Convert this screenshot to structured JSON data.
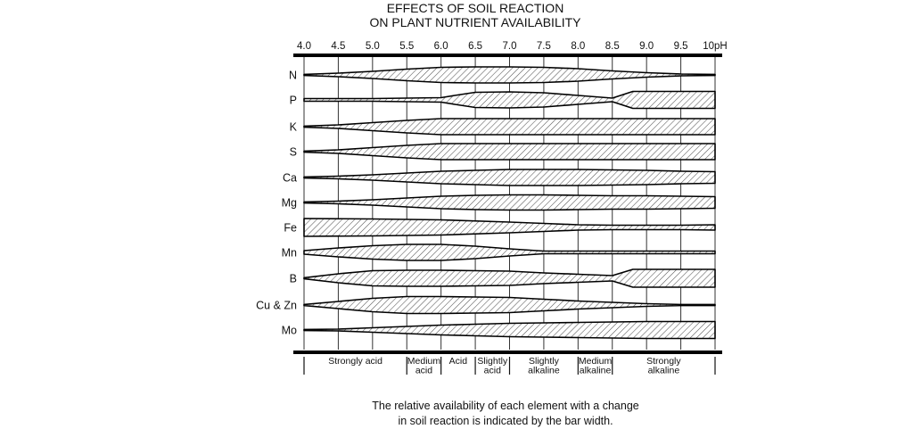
{
  "chart_data": {
    "type": "area",
    "title": "EFFECTS OF SOIL REACTION",
    "subtitle": "ON PLANT NUTRIENT AVAILABILITY",
    "xlabel": "pH",
    "xlim": [
      4.0,
      10.0
    ],
    "x_ticks": [
      4.0,
      4.5,
      5.0,
      5.5,
      6.0,
      6.5,
      7.0,
      7.5,
      8.0,
      8.5,
      9.0,
      9.5,
      10.0
    ],
    "x_tick_labels": [
      "4.0",
      "4.5",
      "5.0",
      "5.5",
      "6.0",
      "6.5",
      "7.0",
      "7.5",
      "8.0",
      "8.5",
      "9.0",
      "9.5",
      "10pH"
    ],
    "grid": true,
    "legend": null,
    "value_meaning": "relative availability (bar half-width, 0-10 scale)",
    "series": [
      {
        "name": "N",
        "points": [
          [
            4.0,
            0
          ],
          [
            4.5,
            2
          ],
          [
            5.0,
            4
          ],
          [
            5.5,
            6.5
          ],
          [
            6.0,
            8.5
          ],
          [
            6.5,
            9
          ],
          [
            7.0,
            9
          ],
          [
            7.5,
            8.5
          ],
          [
            8.0,
            7
          ],
          [
            8.5,
            4.5
          ],
          [
            9.0,
            2.5
          ],
          [
            9.5,
            1
          ],
          [
            10.0,
            0
          ]
        ]
      },
      {
        "name": "P",
        "points": [
          [
            4.0,
            1.5
          ],
          [
            5.0,
            1.5
          ],
          [
            5.5,
            2
          ],
          [
            6.0,
            2.5
          ],
          [
            6.2,
            5
          ],
          [
            6.5,
            8.5
          ],
          [
            7.0,
            9
          ],
          [
            7.5,
            8
          ],
          [
            8.0,
            5
          ],
          [
            8.5,
            2
          ],
          [
            8.8,
            9.5
          ],
          [
            10.0,
            9.5
          ]
        ]
      },
      {
        "name": "K",
        "points": [
          [
            4.0,
            0
          ],
          [
            4.5,
            2
          ],
          [
            5.0,
            4.5
          ],
          [
            5.5,
            7
          ],
          [
            6.0,
            9
          ],
          [
            6.5,
            9
          ],
          [
            10.0,
            9
          ]
        ]
      },
      {
        "name": "S",
        "points": [
          [
            4.0,
            0
          ],
          [
            4.5,
            2
          ],
          [
            5.0,
            4.5
          ],
          [
            5.5,
            7
          ],
          [
            6.0,
            9
          ],
          [
            6.5,
            9
          ],
          [
            10.0,
            9
          ]
        ]
      },
      {
        "name": "Ca",
        "points": [
          [
            4.0,
            0
          ],
          [
            4.5,
            1.5
          ],
          [
            5.0,
            3
          ],
          [
            5.5,
            5
          ],
          [
            6.0,
            7
          ],
          [
            6.5,
            8
          ],
          [
            7.0,
            9
          ],
          [
            7.5,
            9
          ],
          [
            8.0,
            9
          ],
          [
            8.5,
            8.5
          ],
          [
            9.0,
            8
          ],
          [
            9.5,
            7
          ],
          [
            10.0,
            6.5
          ]
        ]
      },
      {
        "name": "Mg",
        "points": [
          [
            4.0,
            0
          ],
          [
            4.5,
            1.5
          ],
          [
            5.0,
            3
          ],
          [
            5.5,
            5
          ],
          [
            6.0,
            7
          ],
          [
            6.5,
            8
          ],
          [
            7.0,
            8.5
          ],
          [
            7.5,
            8.5
          ],
          [
            8.0,
            8
          ],
          [
            8.5,
            7.5
          ],
          [
            9.0,
            7.5
          ],
          [
            9.5,
            7
          ],
          [
            10.0,
            6.5
          ]
        ]
      },
      {
        "name": "Fe",
        "points": [
          [
            4.0,
            10
          ],
          [
            5.0,
            9.5
          ],
          [
            6.0,
            8.5
          ],
          [
            7.0,
            6
          ],
          [
            7.5,
            4.5
          ],
          [
            8.0,
            3
          ],
          [
            8.5,
            2.5
          ],
          [
            9.0,
            2.5
          ],
          [
            9.5,
            2.5
          ],
          [
            10.0,
            3
          ]
        ]
      },
      {
        "name": "Mn",
        "points": [
          [
            4.0,
            2
          ],
          [
            4.5,
            5
          ],
          [
            5.0,
            7.5
          ],
          [
            5.5,
            9
          ],
          [
            6.0,
            9
          ],
          [
            6.5,
            7
          ],
          [
            7.0,
            4
          ],
          [
            7.5,
            1.5
          ],
          [
            8.0,
            1.5
          ],
          [
            10.0,
            1.5
          ]
        ]
      },
      {
        "name": "B",
        "points": [
          [
            4.0,
            0
          ],
          [
            4.5,
            5
          ],
          [
            5.0,
            8.5
          ],
          [
            5.5,
            9
          ],
          [
            6.0,
            9
          ],
          [
            6.5,
            8.5
          ],
          [
            7.0,
            8
          ],
          [
            7.5,
            6
          ],
          [
            8.0,
            4.5
          ],
          [
            8.5,
            3
          ],
          [
            8.8,
            10
          ],
          [
            10.0,
            10
          ]
        ]
      },
      {
        "name": "Cu & Zn",
        "points": [
          [
            4.0,
            0
          ],
          [
            4.5,
            4
          ],
          [
            5.0,
            7.5
          ],
          [
            5.5,
            9.5
          ],
          [
            6.0,
            9.5
          ],
          [
            6.5,
            9
          ],
          [
            7.0,
            8.5
          ],
          [
            7.5,
            6.5
          ],
          [
            8.0,
            4.5
          ],
          [
            8.5,
            3
          ],
          [
            9.0,
            1.5
          ],
          [
            9.5,
            0
          ],
          [
            10.0,
            0
          ]
        ]
      },
      {
        "name": "Mo",
        "points": [
          [
            4.0,
            0
          ],
          [
            4.5,
            1
          ],
          [
            5.0,
            2.5
          ],
          [
            5.5,
            4
          ],
          [
            6.0,
            5.5
          ],
          [
            6.5,
            6.5
          ],
          [
            7.0,
            7.5
          ],
          [
            7.5,
            8
          ],
          [
            8.0,
            8.5
          ],
          [
            8.5,
            9
          ],
          [
            9.0,
            9.5
          ],
          [
            9.5,
            9.5
          ],
          [
            10.0,
            9.5
          ]
        ]
      }
    ],
    "reaction_zones": [
      {
        "label": [
          "Strongly acid"
        ],
        "from": 4.0,
        "to": 5.5
      },
      {
        "label": [
          "Medium",
          "acid"
        ],
        "from": 5.5,
        "to": 6.0
      },
      {
        "label": [
          "Acid"
        ],
        "from": 6.0,
        "to": 6.5
      },
      {
        "label": [
          "Slightly",
          "acid"
        ],
        "from": 6.5,
        "to": 7.0
      },
      {
        "label": [
          "Slightly",
          "alkaline"
        ],
        "from": 7.0,
        "to": 8.0
      },
      {
        "label": [
          "Medium",
          "alkaline"
        ],
        "from": 8.0,
        "to": 8.5
      },
      {
        "label": [
          "Strongly",
          "alkaline"
        ],
        "from": 8.5,
        "to": 10.0
      }
    ],
    "caption": [
      "The relative availability of each element with a change",
      "in soil reaction is indicated by the bar width."
    ]
  }
}
